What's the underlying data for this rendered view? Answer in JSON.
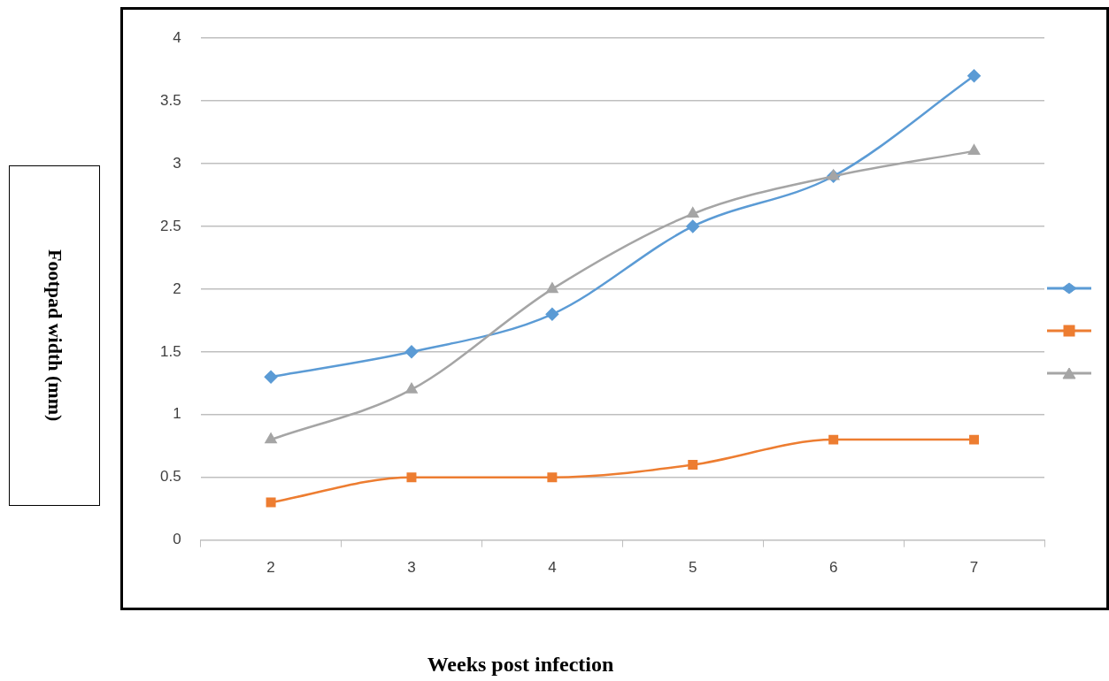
{
  "chart_data": {
    "type": "line",
    "xlabel": "Weeks post infection",
    "ylabel": "Footpad width (mm)",
    "categories": [
      "2",
      "3",
      "4",
      "5",
      "6",
      "7"
    ],
    "series": [
      {
        "color": "#5b9bd5",
        "marker": "diamond",
        "values": [
          1.3,
          1.5,
          1.8,
          2.5,
          2.9,
          3.7
        ]
      },
      {
        "color": "#ed7d31",
        "marker": "square",
        "values": [
          0.3,
          0.5,
          0.5,
          0.6,
          0.8,
          0.8
        ]
      },
      {
        "color": "#a5a5a5",
        "marker": "triangle",
        "values": [
          0.8,
          1.2,
          2.0,
          2.6,
          2.9,
          3.1
        ]
      }
    ],
    "ylim": [
      0,
      4
    ],
    "yticks": [
      0,
      0.5,
      1,
      1.5,
      2,
      2.5,
      3,
      3.5,
      4
    ],
    "grid": "y"
  }
}
